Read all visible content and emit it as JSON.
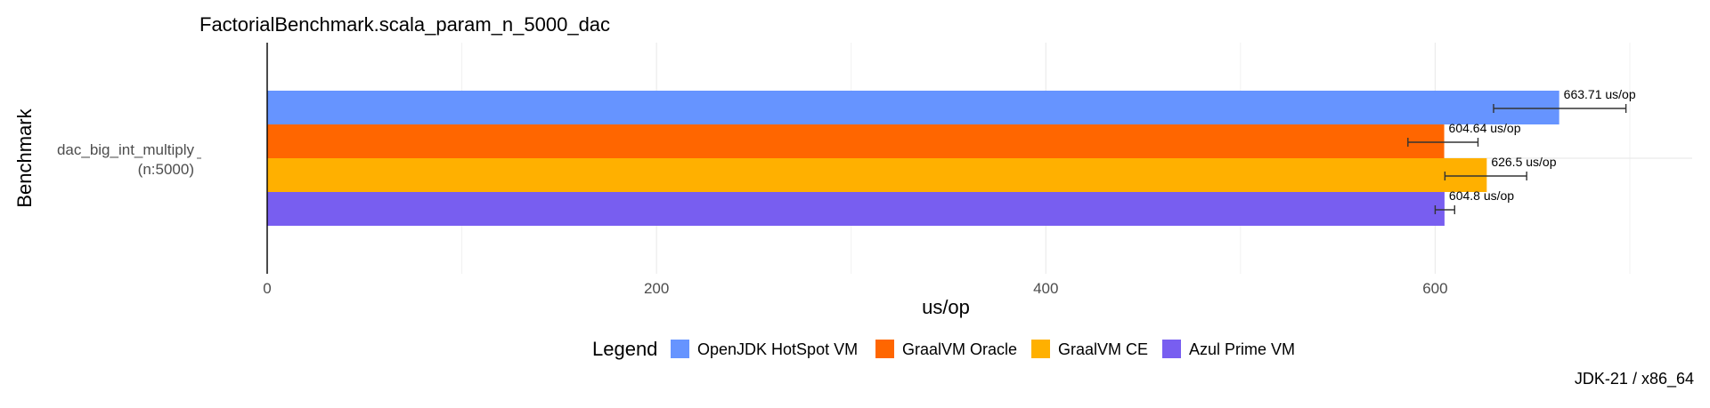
{
  "chart_data": {
    "type": "bar",
    "orientation": "horizontal",
    "title": "FactorialBenchmark.scala_param_n_5000_dac",
    "xlabel": "us/op",
    "ylabel": "Benchmark",
    "caption": "JDK-21 / x86_64",
    "categories": [
      "dac_big_int_multiply\n(n:5000)"
    ],
    "xlim": [
      0,
      700
    ],
    "xticks": [
      0,
      200,
      400,
      600
    ],
    "grid": true,
    "legend": {
      "title": "Legend",
      "position": "bottom"
    },
    "series": [
      {
        "name": "OpenJDK HotSpot VM",
        "color": "#6694ff",
        "values": [
          663.71
        ],
        "error": [
          [
            630,
            698
          ]
        ],
        "label": "663.71 us/op"
      },
      {
        "name": "GraalVM Oracle",
        "color": "#ff6600",
        "values": [
          604.64
        ],
        "error": [
          [
            586,
            622
          ]
        ],
        "label": "604.64 us/op"
      },
      {
        "name": "GraalVM CE",
        "color": "#ffb000",
        "values": [
          626.5
        ],
        "error": [
          [
            605,
            647
          ]
        ],
        "label": "626.5 us/op"
      },
      {
        "name": "Azul Prime VM",
        "color": "#785ef0",
        "values": [
          604.8
        ],
        "error": [
          [
            600,
            610
          ]
        ],
        "label": "604.8 us/op"
      }
    ]
  }
}
